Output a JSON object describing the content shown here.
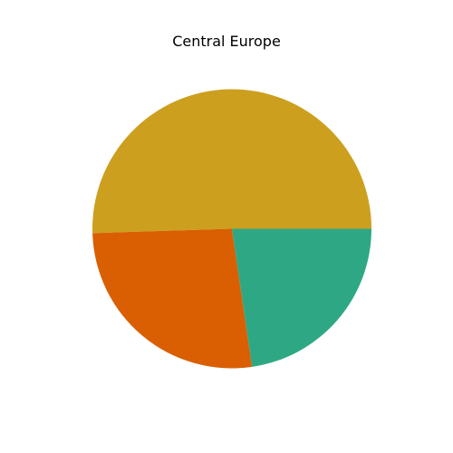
{
  "chart_data": {
    "type": "pie",
    "title": "Central Europe",
    "slices": [
      {
        "value": 50.5,
        "color": "#CC9F1E"
      },
      {
        "value": 26.8,
        "color": "#D95F02"
      },
      {
        "value": 22.7,
        "color": "#2EA884"
      }
    ],
    "legend": "none"
  }
}
